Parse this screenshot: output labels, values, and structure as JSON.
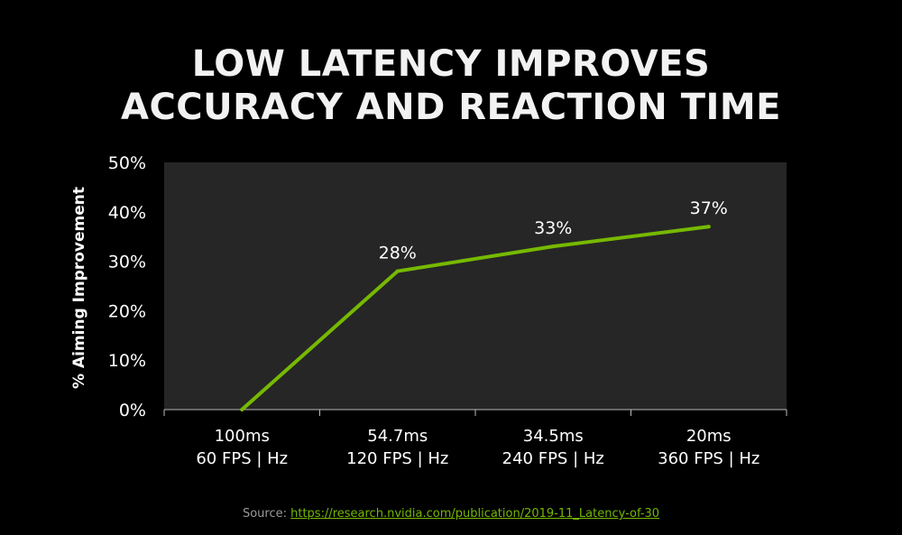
{
  "title_lines": [
    "LOW LATENCY IMPROVES",
    "ACCURACY AND REACTION TIME"
  ],
  "colors": {
    "background": "#000000",
    "plot_background": "#262626",
    "line": "#76b900",
    "text": "#ffffff",
    "axis": "#bbbbbb",
    "source_text": "#9a9a9a",
    "link": "#76b900"
  },
  "source": {
    "label": "Source:",
    "link_text": "https://research.nvidia.com/publication/2019-11_Latency-of-30"
  },
  "chart_data": {
    "type": "line",
    "title": "LOW LATENCY IMPROVES ACCURACY AND REACTION TIME",
    "xlabel": "",
    "ylabel": "% Aiming Improvement",
    "categories": [
      [
        "100ms",
        "60 FPS | Hz"
      ],
      [
        "54.7ms",
        "120 FPS | Hz"
      ],
      [
        "34.5ms",
        "240 FPS | Hz"
      ],
      [
        "20ms",
        "360 FPS | Hz"
      ]
    ],
    "series": [
      {
        "values": [
          0,
          28,
          33,
          37
        ],
        "data_labels": [
          "",
          "28%",
          "33%",
          "37%"
        ]
      }
    ],
    "ylim": [
      0,
      50
    ],
    "yticks": [
      0,
      10,
      20,
      30,
      40,
      50
    ],
    "ytick_labels": [
      "0%",
      "10%",
      "20%",
      "30%",
      "40%",
      "50%"
    ],
    "grid": false,
    "legend": "none"
  }
}
